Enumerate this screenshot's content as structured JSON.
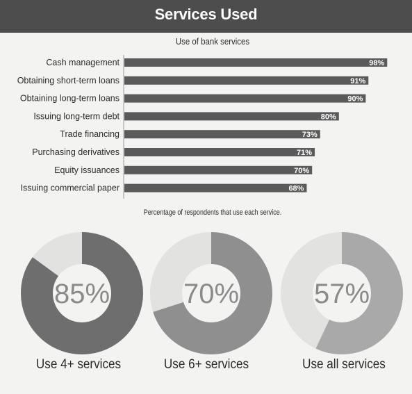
{
  "header": {
    "title": "Services Used"
  },
  "chart_data": [
    {
      "type": "bar",
      "orientation": "horizontal",
      "title": "Use of bank services",
      "note": "Percentage of respondents that use each service.",
      "categories": [
        "Cash management",
        "Obtaining short-term loans",
        "Obtaining long-term loans",
        "Issuing long-term debt",
        "Trade financing",
        "Purchasing derivatives",
        "Equity issuances",
        "Issuing commercial paper"
      ],
      "values": [
        98,
        91,
        90,
        80,
        73,
        71,
        70,
        68
      ],
      "value_labels": [
        "98%",
        "91%",
        "90%",
        "80%",
        "73%",
        "71%",
        "70%",
        "68%"
      ],
      "xlim": [
        0,
        100
      ],
      "bar_color": "#5a5a5a",
      "grid": false
    },
    {
      "type": "pie",
      "style": "donut",
      "items": [
        {
          "value": 85,
          "label": "85%",
          "caption": "Use 4+ services",
          "color": "#6e6e6e"
        },
        {
          "value": 70,
          "label": "70%",
          "caption": "Use 6+ services",
          "color": "#8f8f8f"
        },
        {
          "value": 57,
          "label": "57%",
          "caption": "Use all services",
          "color": "#a9a9a9"
        }
      ],
      "remainder_color": "#e2e2e0"
    }
  ]
}
